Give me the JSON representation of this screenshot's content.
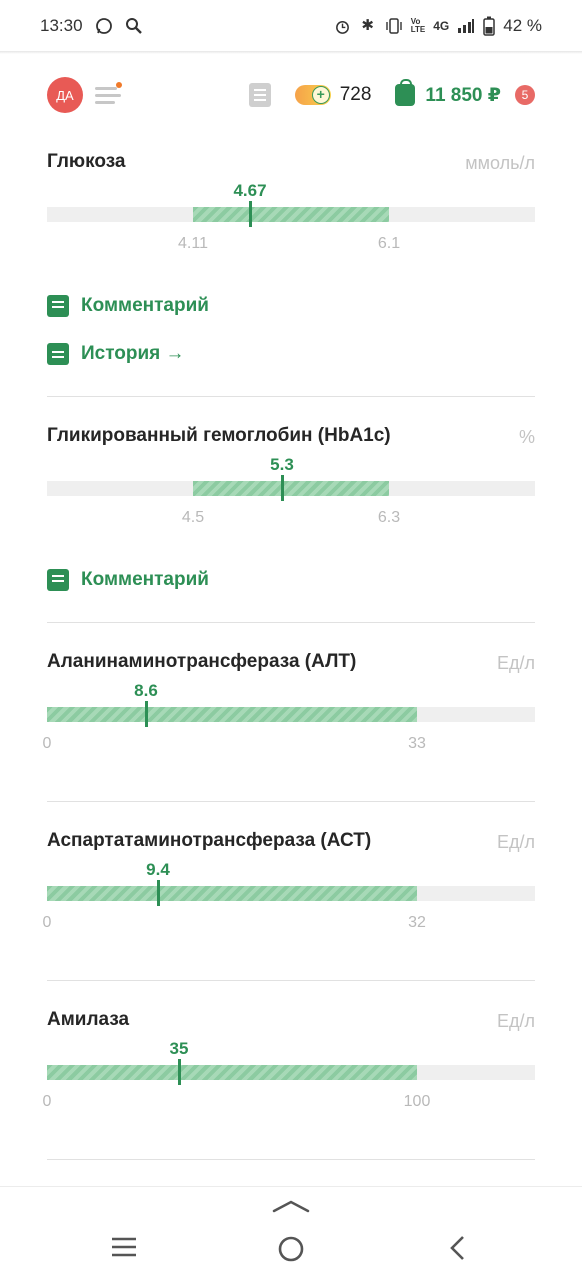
{
  "status": {
    "time": "13:30",
    "battery": "42 %",
    "net": "4G"
  },
  "header": {
    "avatar": "ДА",
    "coins": "728",
    "balance": "11 850 ₽",
    "badge": "5"
  },
  "items": [
    {
      "title": "Глюкоза",
      "unit": "ммоль/л",
      "value": "4.67",
      "min": "4.11",
      "max": "6.1"
    },
    {
      "title": "Гликированный гемоглобин (HbA1c)",
      "unit": "%",
      "value": "5.3",
      "min": "4.5",
      "max": "6.3"
    },
    {
      "title": "Аланинаминотрансфераза (АЛТ)",
      "unit": "Ед/л",
      "value": "8.6",
      "min": "0",
      "max": "33"
    },
    {
      "title": "Аспартатаминотрансфераза (АСТ)",
      "unit": "Ед/л",
      "value": "9.4",
      "min": "0",
      "max": "32"
    },
    {
      "title": "Амилаза",
      "unit": "Ед/л",
      "value": "35",
      "min": "0",
      "max": "100"
    }
  ],
  "actions": {
    "comment": "Комментарий",
    "history": "История →"
  },
  "icons": [
    "whatsapp-icon",
    "search-icon",
    "alarm-icon",
    "bluetooth-icon",
    "vibrate-icon",
    "volte-icon",
    "signal-icon",
    "battery-icon",
    "menu-icon",
    "list-icon",
    "coin-icon",
    "bag-icon",
    "comment-icon",
    "history-icon",
    "chevron-up-icon",
    "recent-apps-icon",
    "home-icon",
    "back-icon"
  ]
}
